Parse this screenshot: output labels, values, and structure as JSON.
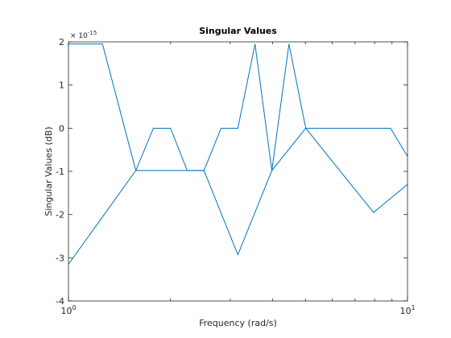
{
  "chart_data": {
    "type": "line",
    "title": "Singular Values",
    "xlabel": "Frequency (rad/s)",
    "ylabel": "Singular Values (dB)",
    "xscale": "log",
    "xlim": [
      1,
      10
    ],
    "ylim": [
      -4,
      2
    ],
    "y_multiplier": "× 10",
    "y_multiplier_exponent": "-15",
    "x_tick_labels": [
      {
        "value": 1,
        "base": "10",
        "exp": "0"
      },
      {
        "value": 10,
        "base": "10",
        "exp": "1"
      }
    ],
    "x_minor_ticks": [
      2,
      3,
      4,
      5,
      6,
      7,
      8,
      9
    ],
    "y_ticks": [
      -4,
      -3,
      -2,
      -1,
      0,
      1,
      2
    ],
    "grid": false,
    "box": true,
    "series_color": "#0072BD",
    "series": [
      {
        "x": [
          1.0,
          1.26,
          1.58,
          2.0,
          2.51,
          3.16,
          3.98,
          5.01,
          6.31,
          7.94,
          10.0
        ],
        "y": [
          1.95,
          1.95,
          -0.98,
          -0.98,
          -0.98,
          -2.93,
          -0.98,
          0.0,
          -0.98,
          -1.95,
          -1.3
        ]
      },
      {
        "x": [
          1.0,
          1.58,
          1.78,
          2.0,
          2.24,
          2.51,
          2.82,
          3.16,
          3.55,
          3.98,
          4.47,
          5.01,
          5.62,
          6.31,
          7.08,
          7.94,
          8.91,
          10.0
        ],
        "y": [
          -3.15,
          -0.98,
          0.0,
          0.0,
          -0.98,
          -0.98,
          0.0,
          0.0,
          1.95,
          -0.98,
          1.95,
          0.0,
          0.0,
          0.0,
          0.0,
          0.0,
          0.0,
          -0.65
        ]
      }
    ]
  }
}
